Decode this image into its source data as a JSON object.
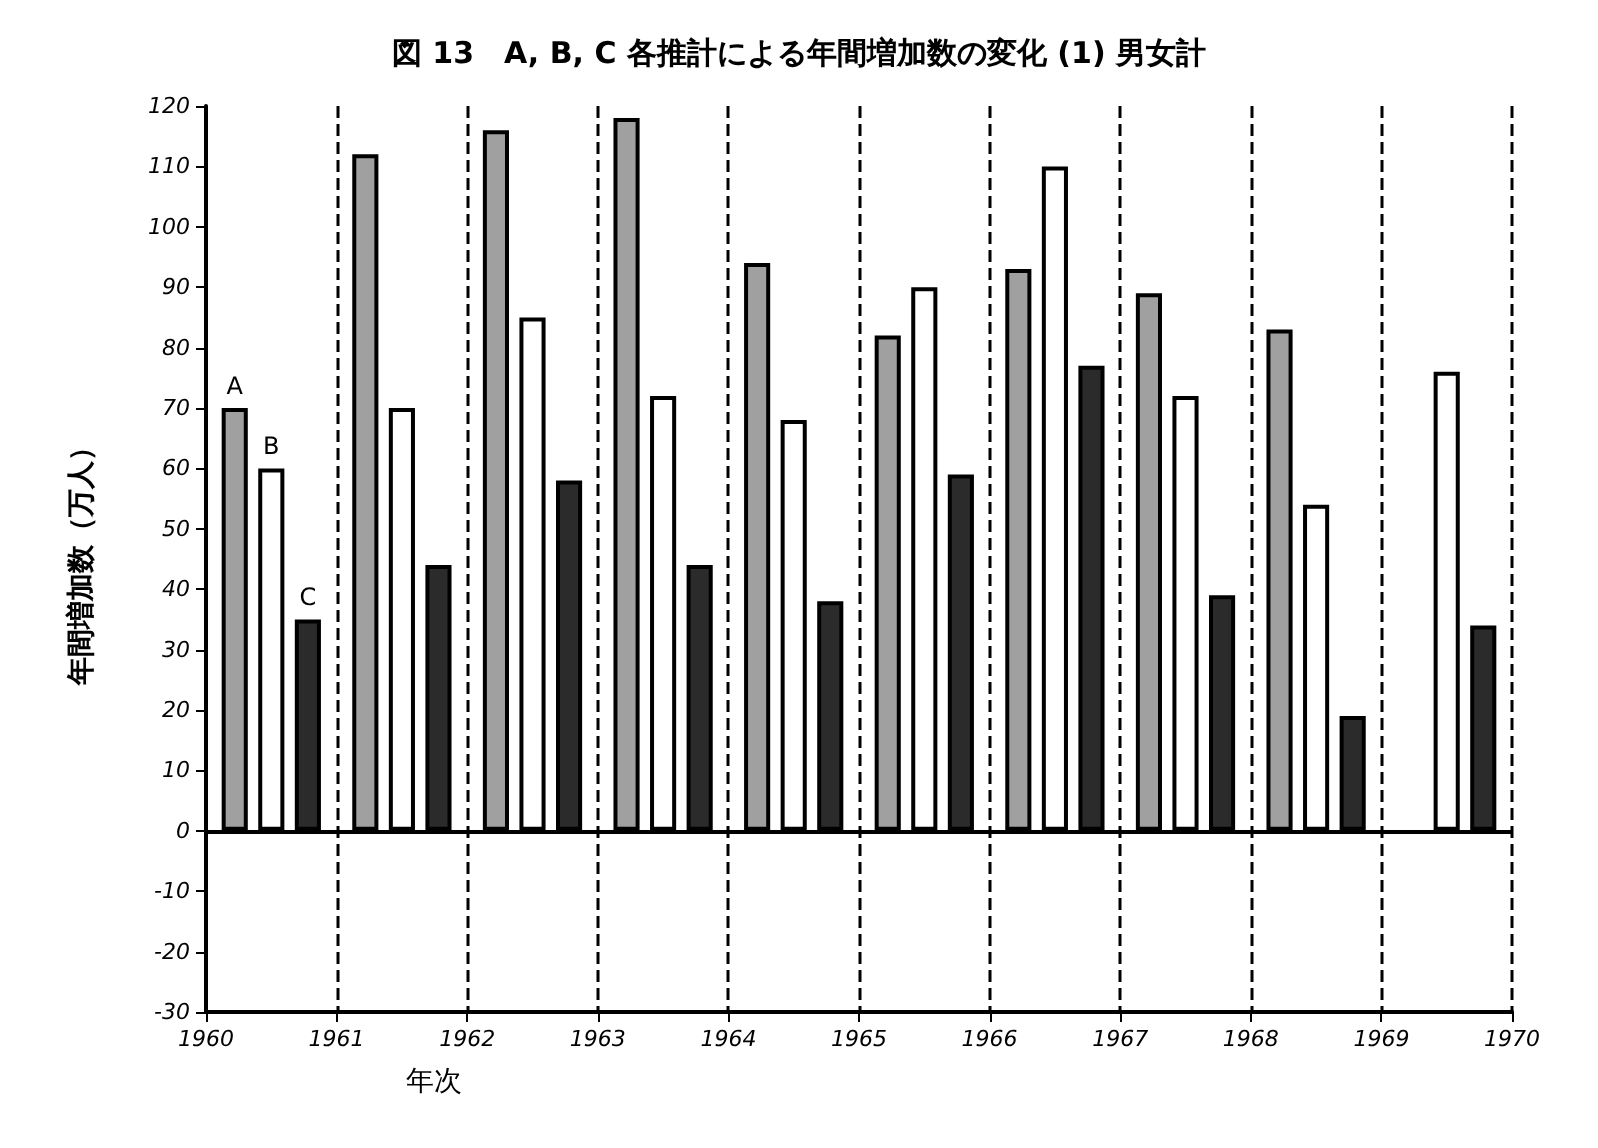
{
  "chart_data": {
    "type": "bar",
    "title": "図 13　A, B, C 各推計による年間増加数の変化 (1) 男女計",
    "xlabel": "年次",
    "ylabel": "年間増加数（万人）",
    "x": [
      1960.5,
      1961.5,
      1962.5,
      1963.5,
      1964.5,
      1965.5,
      1966.5,
      1967.5,
      1968.5,
      1969.5
    ],
    "series": [
      {
        "name": "A",
        "color": "#a0a0a0",
        "values": [
          70,
          112,
          116,
          118,
          94,
          82,
          93,
          89,
          83,
          null
        ]
      },
      {
        "name": "B",
        "color": "#ffffff",
        "values": [
          60,
          70,
          85,
          72,
          68,
          90,
          110,
          72,
          54,
          76
        ]
      },
      {
        "name": "C",
        "color": "#2b2b2b",
        "values": [
          35,
          44,
          58,
          44,
          38,
          59,
          77,
          39,
          19,
          34
        ]
      }
    ],
    "xlim": [
      1960,
      1970
    ],
    "xticks": [
      1960,
      1961,
      1962,
      1963,
      1964,
      1965,
      1966,
      1967,
      1968,
      1969,
      1970
    ],
    "ylim": [
      -30,
      120
    ],
    "yticks": [
      -30,
      -20,
      -10,
      0,
      10,
      20,
      30,
      40,
      50,
      60,
      70,
      80,
      90,
      100,
      110,
      120
    ],
    "ref_lines": [
      {
        "axis": "y",
        "value": 0,
        "color": "#000000",
        "line_style": "solid"
      }
    ],
    "grid": "x",
    "legend": false
  }
}
